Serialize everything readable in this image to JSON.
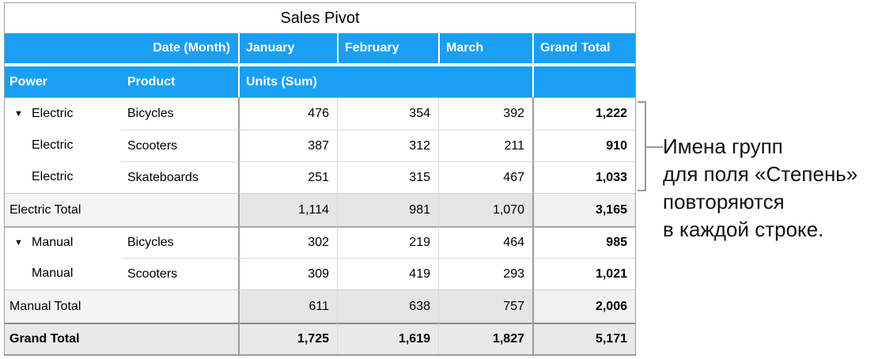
{
  "pivot": {
    "title": "Sales Pivot",
    "header": {
      "date_month_label": "Date (Month)",
      "months": [
        "January",
        "February",
        "March"
      ],
      "grand_total_label": "Grand Total",
      "power_label": "Power",
      "product_label": "Product",
      "units_label": "Units (Sum)"
    },
    "disclosure_glyph": "▼",
    "rows": [
      {
        "power": "Electric",
        "product": "Bicycles",
        "january": "476",
        "february": "354",
        "march": "392",
        "grand_total": "1,222"
      },
      {
        "power": "Electric",
        "product": "Scooters",
        "january": "387",
        "february": "312",
        "march": "211",
        "grand_total": "910"
      },
      {
        "power": "Electric",
        "product": "Skateboards",
        "january": "251",
        "february": "315",
        "march": "467",
        "grand_total": "1,033"
      },
      {
        "label": "Electric Total",
        "january": "1,114",
        "february": "981",
        "march": "1,070",
        "grand_total": "3,165"
      },
      {
        "power": "Manual",
        "product": "Bicycles",
        "january": "302",
        "february": "219",
        "march": "464",
        "grand_total": "985"
      },
      {
        "power": "Manual",
        "product": "Scooters",
        "january": "309",
        "february": "419",
        "march": "293",
        "grand_total": "1,021"
      },
      {
        "label": "Manual Total",
        "january": "611",
        "february": "638",
        "march": "757",
        "grand_total": "2,006"
      },
      {
        "label": "Grand Total",
        "january": "1,725",
        "february": "1,619",
        "march": "1,827",
        "grand_total": "5,171"
      }
    ]
  },
  "annotation": {
    "lines": [
      "Имена групп",
      "для поля «Степень»",
      "повторяются",
      "в каждой строке."
    ]
  },
  "colors": {
    "header_blue": "#19A0F4",
    "header_text": "#FFFFFF",
    "subtotal_bg": "#E5E5E5",
    "subtotal_label_bg": "#F4F4F4",
    "grandcol_total_bg": "#F0F0F0",
    "grand_row_bg": "#E9E9E9",
    "border_dark": "#9B9B9B",
    "border_light": "#D9D9D9",
    "bracket": "#999999"
  }
}
